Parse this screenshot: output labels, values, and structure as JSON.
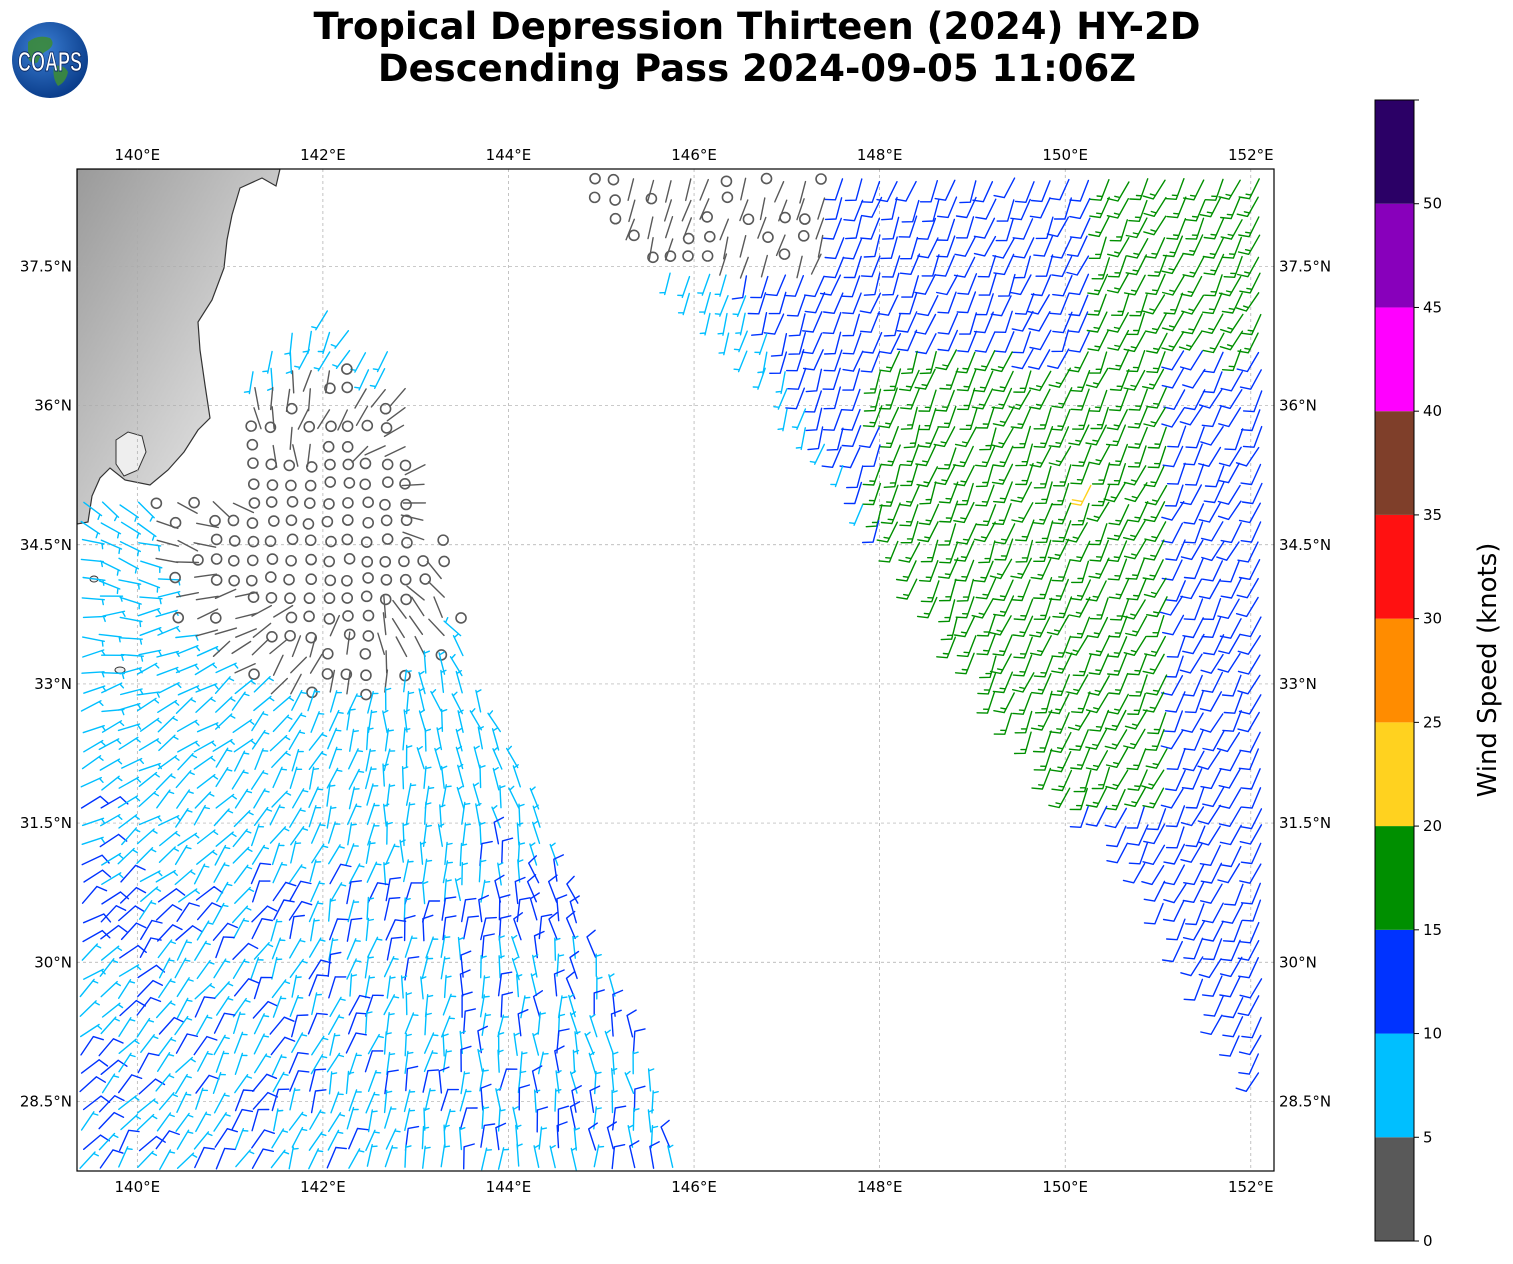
{
  "title": {
    "line1": "Tropical Depression Thirteen (2024) HY-2D",
    "line2": "Descending Pass 2024-09-05 11:06Z"
  },
  "logo": {
    "text": "COAPS",
    "icon": "globe-icon"
  },
  "map": {
    "lon_ticks": [
      "140°E",
      "142°E",
      "144°E",
      "146°E",
      "148°E",
      "150°E",
      "152°E"
    ],
    "lat_ticks": [
      "37.5°N",
      "36°N",
      "34.5°N",
      "33°N",
      "31.5°N",
      "30°N",
      "28.5°N"
    ],
    "lon_range": [
      139.35,
      152.25
    ],
    "lat_range": [
      27.75,
      38.55
    ],
    "grid": true,
    "basemap": "grayscale terrain, Japan coastline upper-left"
  },
  "colorbar": {
    "label": "Wind Speed (knots)",
    "ticks": [
      "0",
      "5",
      "10",
      "15",
      "20",
      "25",
      "30",
      "35",
      "40",
      "45",
      "50"
    ],
    "bins": [
      {
        "min": 0,
        "max": 5,
        "color": "#595959"
      },
      {
        "min": 5,
        "max": 10,
        "color": "#00bfff"
      },
      {
        "min": 10,
        "max": 15,
        "color": "#0033ff"
      },
      {
        "min": 15,
        "max": 20,
        "color": "#008f00"
      },
      {
        "min": 20,
        "max": 25,
        "color": "#ffd21f"
      },
      {
        "min": 25,
        "max": 30,
        "color": "#ff8c00"
      },
      {
        "min": 30,
        "max": 35,
        "color": "#ff1111"
      },
      {
        "min": 35,
        "max": 40,
        "color": "#7f3f2a"
      },
      {
        "min": 40,
        "max": 45,
        "color": "#ff00ff"
      },
      {
        "min": 45,
        "max": 50,
        "color": "#8800bb"
      },
      {
        "min": 50,
        "max": 55,
        "color": "#2b0066"
      }
    ]
  },
  "chart_data": {
    "type": "scatter",
    "description_series": [
      {
        "name": "",
        "swath": "west",
        "color_classes": [
          "0-5",
          "5-10",
          "10-15"
        ]
      },
      {
        "name": "",
        "swath": "east",
        "color_classes": [
          "5-10",
          "10-15",
          "15-20",
          "20-25"
        ]
      }
    ],
    "storm_center_approx": {
      "lon": 142.0,
      "lat": 34.6
    },
    "ylim": [
      0,
      55
    ]
  }
}
